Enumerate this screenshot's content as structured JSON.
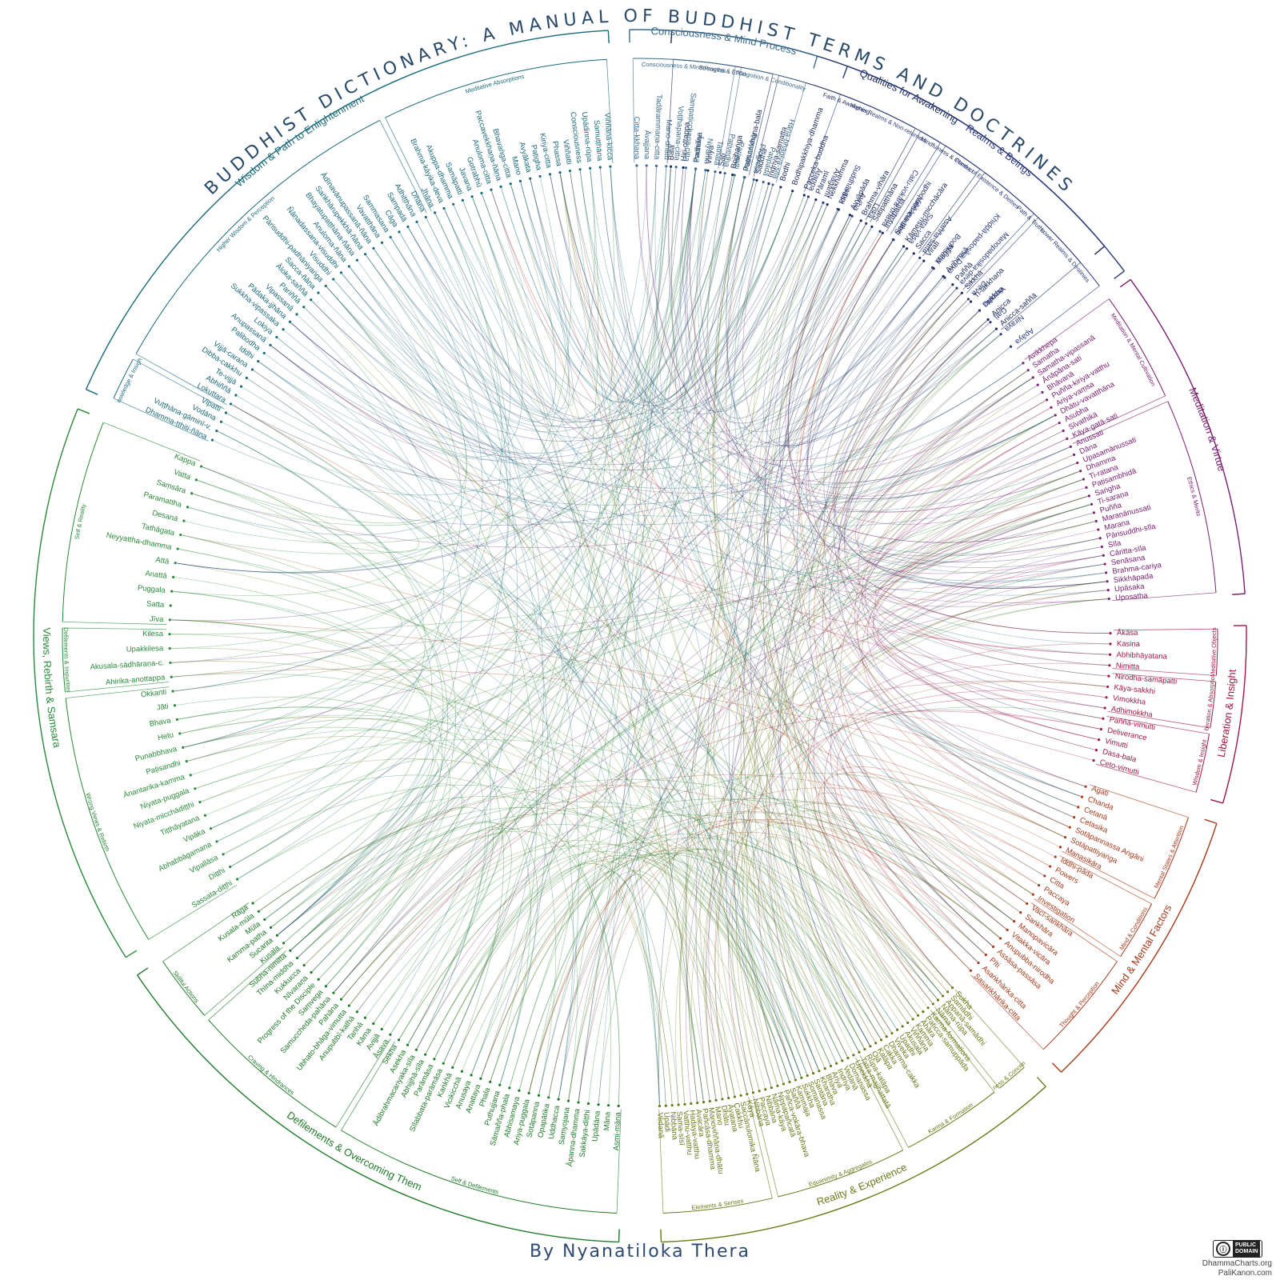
{
  "title": "BUDDHIST DICTIONARY: A MANUAL OF BUDDHIST TERMS AND DOCTRINES",
  "author": "By Nyanatiloka Thera",
  "credits": {
    "license_line1": "PUBLIC",
    "license_line2": "DOMAIN",
    "site1": "DhammaCharts.org",
    "site2": "PaliKanon.com"
  },
  "groups": [
    {
      "name": "Qualities for Awakening",
      "color": "#1c2a5a",
      "start": 3,
      "end": 50,
      "subs": [
        {
          "name": "Strengths & Effort",
          "terms": [
            "Bala",
            "Hiri-ottappa",
            "Padhāna",
            "Viriya",
            "Sati",
            "Bojjhaṅga",
            "Paṭisaṅkhāna-bala"
          ]
        },
        {
          "name": "Faith & Awakening",
          "terms": [
            "Saddhā",
            "Indriya-samatta",
            "Bodhi",
            "Bodhipakkhiya-dhamma",
            "Pacceka-buddha",
            "Pāramī",
            "Nekkhamma",
            "Iddhi",
            "Avyāpāda",
            "Brahma-vihāra"
          ]
        },
        {
          "name": "Mindfulness & Conduct",
          "terms": [
            "Satipaṭṭhāna",
            "Iriyāpatha",
            "Samma-sambodhi",
            "Kāmesu-micchācāra",
            "Sacca"
          ]
        },
        {
          "name": "Path & Truths",
          "terms": [
            "Virati",
            "Magga",
            "Avihiṃsā",
            "Paññā",
            "Sikkhā",
            "Ti-lakkhaṇa",
            "Dukkha",
            "Anicca",
            "Anicca-saññā"
          ]
        }
      ]
    },
    {
      "name": "Meditation & Virtue",
      "color": "#7a2070",
      "start": 54,
      "end": 86,
      "subs": [
        {
          "name": "Meditation & Mental Cultivation",
          "terms": [
            "Avikkhepa",
            "Samatha",
            "Samatha-vipassanā",
            "Ānāpāna-sati",
            "Bhāvanā",
            "Puñña-kiriya-vatthu",
            "Ariya-vaṃsa",
            "Dhātu-vavatthāna",
            "Asubha",
            "Sīvathikā",
            "Kāya-gatā-sati"
          ]
        },
        {
          "name": "Ethics & Merits",
          "terms": [
            "Anussati",
            "Dāna",
            "Upasamānussati",
            "Dhamma",
            "Ti-ratana",
            "Paṭisambhidā",
            "Saṅgha",
            "Ti-saraṇa",
            "Puñña",
            "Maraṇānussati",
            "Maraṇa",
            "Pārisuddhi-sīla",
            "Sīla",
            "Cāritta-sīla",
            "Senāsana",
            "Brahma-cariya",
            "Sikkhāpada",
            "Upāsaka",
            "Uposatha"
          ]
        }
      ]
    },
    {
      "name": "Liberation & Insight",
      "color": "#a01840",
      "start": 89,
      "end": 106,
      "subs": [
        {
          "name": "Meditative Objects",
          "terms": [
            "Ākāsa",
            "Kasiṇa",
            "Abhibhāyatana",
            "Nimitta"
          ]
        },
        {
          "name": "Liberation & Absorption",
          "terms": [
            "Nirodha-samāpatti",
            "Kāya-sakkhi",
            "Vimokkha",
            "Adhimokkha"
          ]
        },
        {
          "name": "Wisdom & Insight",
          "terms": [
            "Paññā-vimutti",
            "Deliverance",
            "Vimutti",
            "Dasa-bala",
            "Ceto-vimutti"
          ]
        }
      ]
    },
    {
      "name": "Mind & Mental Factors",
      "color": "#a83a1a",
      "start": 108,
      "end": 136,
      "subs": [
        {
          "name": "Mental States & Attention",
          "terms": [
            "Agati",
            "Chanda",
            "Cetanā",
            "Cetasika",
            "Sotāpannassa Aṅgāni",
            "Sotāpattiyaṅga",
            "Manasikāra"
          ]
        },
        {
          "name": "Mind & Conditions",
          "terms": [
            "Iddhi-pāda",
            "Powers",
            "Citta",
            "Paccaya",
            "Investigation"
          ]
        },
        {
          "name": "Thought & Perception",
          "terms": [
            "Vacī-saṅkhāra",
            "Saṅkhāra",
            "Manopavicāra",
            "Vitakka-vicāra",
            "Anupubba-nirodha",
            "Assāsa-passāsa",
            "Pīti",
            "Asaṅkhārika-citta",
            "Sasaṅkhārika-citta"
          ]
        }
      ]
    },
    {
      "name": "Reality & Experience",
      "color": "#6a7a18",
      "start": 138,
      "end": 178,
      "subs": [
        {
          "name": "Happiness & Concentration",
          "terms": [
            "Sukha",
            "Samādhi",
            "Appanā-samādhi",
            "Nāma-rūpa",
            "Nāma"
          ]
        },
        {
          "name": "Karma & Formation",
          "terms": [
            "Karma-formations",
            "Paṭicca-samuppāda",
            "Āhāra",
            "Kamma",
            "Viññāṇa",
            "Akusala",
            "Upadhi",
            "Viveka",
            "Dhamma-cakka",
            "Cakka",
            "Kalāpa",
            "Ojā",
            "Rūpa-kalāpa",
            "Tatra-majjhattatā"
          ]
        },
        {
          "name": "Equanimity & Aggregates",
          "terms": [
            "Upekkhā",
            "Domanassa",
            "Vedanā",
            "Indriya",
            "Ariya",
            "Bhava",
            "Khandha",
            "Santāna",
            "Somanassa",
            "Sukkha",
            "Kammaja",
            "Saññā",
            "Pañca-vokāra-bhava",
            "Nippapañcatā",
            "Nāma-kāya",
            "Nibbāna",
            "Paccaya",
            "Nibbāna"
          ]
        },
        {
          "name": "Elements & Senses",
          "terms": [
            "Kāya",
            "Saccānulomika Ñāṇa",
            "Cakkhu",
            "Āyatana",
            "Dhātu",
            "Mano",
            "Manoviññāṇa-dhātu",
            "Pañcāsa-dhamma",
            "Avacāra",
            "Hadaya-vatthu",
            "Vatthu-vatthu",
            "Sama-sīsī",
            "Nibbāna",
            "Upādi",
            "Vedanā"
          ]
        }
      ]
    },
    {
      "name": "Defilements & Overcoming Them",
      "color": "#1e7a28",
      "start": 182,
      "end": 236,
      "subs": [
        {
          "name": "Self & Defilements",
          "terms": [
            "Asmi-māna",
            "Māna",
            "Upādāna",
            "Sakkāya-diṭṭhi",
            "Āpanna-dhamma",
            "Saṃyojana",
            "Uddhacca",
            "Opapātika",
            "Sotāpanna",
            "Ariya-puggala",
            "Abhisamaya",
            "Sāmañña-phala",
            "Puthujjana",
            "Phala",
            "Anattaya",
            "Anusaya",
            "Vicikicchā",
            "Kaṅkhā",
            "Sīlabbata-parāmāsa",
            "Parāmāsa",
            "Abhijjhā-sīla",
            "Ādibrahmacariyaka-sīla",
            "Asekha",
            "Sekha"
          ]
        },
        {
          "name": "Craving & Hindrances",
          "terms": [
            "Āsava",
            "Avijjā",
            "Kāma",
            "Taṇhā",
            "Anupubbī-kathā",
            "Ubhato-bhāga-vimutta",
            "Pahāna",
            "Samuccheda-pahāna",
            "Saṃvega",
            "Progress of the Disciple",
            "Nīvaraṇa",
            "Kukkucca",
            "Thīna-middha",
            "Subha-nimitta"
          ]
        },
        {
          "name": "Skillful Actions",
          "terms": [
            "Kusala",
            "Sucarita",
            "Kamma-patha",
            "Mūla",
            "Kusala-mūla",
            "Rāga"
          ]
        }
      ]
    },
    {
      "name": "Views, Rebirth & Samsara",
      "color": "#2a8a3a",
      "start": 238,
      "end": 292,
      "subs": [
        {
          "name": "Wrong Views & Rebirth",
          "terms": [
            "Sassata-diṭṭhi",
            "Diṭṭhi",
            "Vipallāsa",
            "Abhabbāgamana",
            "Vipāka",
            "Tiṭṭhāyatana",
            "Niyata-micchādiṭṭhi",
            "Niyata-puggala",
            "Ānantarika-kamma",
            "Paṭisandhi",
            "Punabbhava",
            "Hetu",
            "Bhava",
            "Jāti",
            "Okkanti"
          ]
        },
        {
          "name": "Defilements & Impurities",
          "terms": [
            "Ahirika-anottappa",
            "Akusala-sādhāraṇa-c.",
            "Upakkilesa",
            "Kilesa"
          ]
        },
        {
          "name": "Self & Reality",
          "terms": [
            "Jīva",
            "Satta",
            "Puggala",
            "Anattā",
            "Attā",
            "Neyyattha-dhamma",
            "Tathāgata",
            "Desanā",
            "Paramattha",
            "Saṃsāra",
            "Vatta",
            "Kappa"
          ]
        }
      ]
    },
    {
      "name": "Wisdom & Path to Enlightenment",
      "color": "#1a6a7a",
      "start": 294,
      "end": 357,
      "subs": [
        {
          "name": "Knowledge & Insight",
          "terms": [
            "Dhamma-ṭṭhiti-ñāṇa",
            "Vuṭṭhāna-gāminī-v.",
            "Vodāna",
            "Vipatti"
          ]
        },
        {
          "name": "Higher Wisdom & Perception",
          "terms": [
            "Lokuttara",
            "Abhiññā",
            "Te-vijjā",
            "Dibba-cakkhu",
            "Vijjā-caraṇa",
            "Iddhi",
            "Palibodha",
            "Anupassanā",
            "Lokiya",
            "Sukkha-vipassaka",
            "Pādaka-jjhāna",
            "Vipassanā",
            "Pariññā",
            "Āloka-saññā",
            "Sacca-ñāṇa",
            "Pārisuddhi-padhāniyaṅga",
            "Visuddhi",
            "Ñāṇadassana-visuddhi",
            "Anuloma-ñāṇa",
            "Bhayatupaṭṭhāna-ñāṇa",
            "Saṅkhārupekkhā-ñāṇa",
            "Ādīnavānupassanā-ñāṇa",
            "Vavatthāna",
            "Sammasana",
            "Cāga",
            "Sampadā",
            "Adhiṭṭhāna",
            "Dhāna"
          ]
        },
        {
          "name": "Meditative Absorptions",
          "terms": [
            "Jhāna",
            "Brahma-kāyika-deva",
            "Akuppa-dhamma",
            "Samāpatti",
            "Javana",
            "Gotrabhū",
            "Anuloma-citta",
            "Paccavekkhaṇa-ñāṇa",
            "Bhavaṅga-citta",
            "Mano",
            "Avyākata",
            "Paṭigha",
            "Kiriya-citta",
            "Phassa",
            "Viññatti",
            "Consciousness",
            "Upādinna-rūpa",
            "Samuṭṭhāna",
            "Viññāṇa-kicca"
          ]
        }
      ]
    },
    {
      "name": "Consciousness & Mind Process",
      "color": "#3a6a8a",
      "start": 359,
      "end": 377,
      "subs": [
        {
          "name": "Consciousness & Mind Process",
          "terms": [
            "Citta-kkhaṇa",
            "Āvajjana",
            "Tadārammaṇa-citta",
            "Mano-dhātu",
            "Voṭṭhapana-citta",
            "Sampaṭicchana-citta",
            "Āyatana",
            "Niyāma",
            "Tathatā"
          ]
        },
        {
          "name": "Cognition & Conditionality",
          "terms": [
            "Paṭivedha",
            "Pariyatti",
            "Penetration",
            "Progress",
            "Paṭipadā",
            "Hāna-bhāgiya-sīla"
          ]
        }
      ]
    },
    {
      "name": "Realms & Beings",
      "color": "#2a3a7a",
      "start": 380,
      "end": 413,
      "subs": [
        {
          "name": "Higher Realms & Non-returners",
          "terms": [
            "Ātappa",
            "Anāgāmī",
            "Suddhāvāsa",
            "Avīha",
            "Loka",
            "Catu-vokāra-bhava"
          ]
        },
        {
          "name": "Planes of Existence & Deities",
          "terms": [
            "Viññāṇa-ṭṭhiti",
            "Satta-vāsa",
            "Asañña-satta",
            "Bodhisatta",
            "Khiḍḍā-padosika Deva",
            "Manopadosika-deva"
          ]
        },
        {
          "name": "Lower Realms & Destinies",
          "terms": [
            "Deva",
            "Vinipāta",
            "Gati",
            "Niraya",
            "Apāya"
          ]
        }
      ]
    }
  ]
}
